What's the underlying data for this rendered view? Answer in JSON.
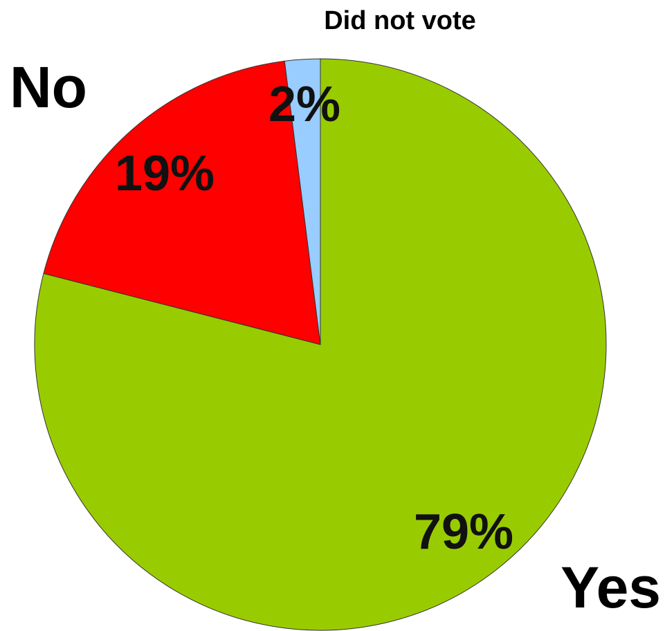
{
  "chart_data": {
    "type": "pie",
    "categories": [
      "Yes",
      "No",
      "Did not vote"
    ],
    "values": [
      79,
      19,
      2
    ],
    "value_labels": [
      "79%",
      "19%",
      "2%"
    ],
    "colors": [
      "#99cc00",
      "#ff0000",
      "#99ccff"
    ],
    "title": "",
    "legend": "none"
  }
}
